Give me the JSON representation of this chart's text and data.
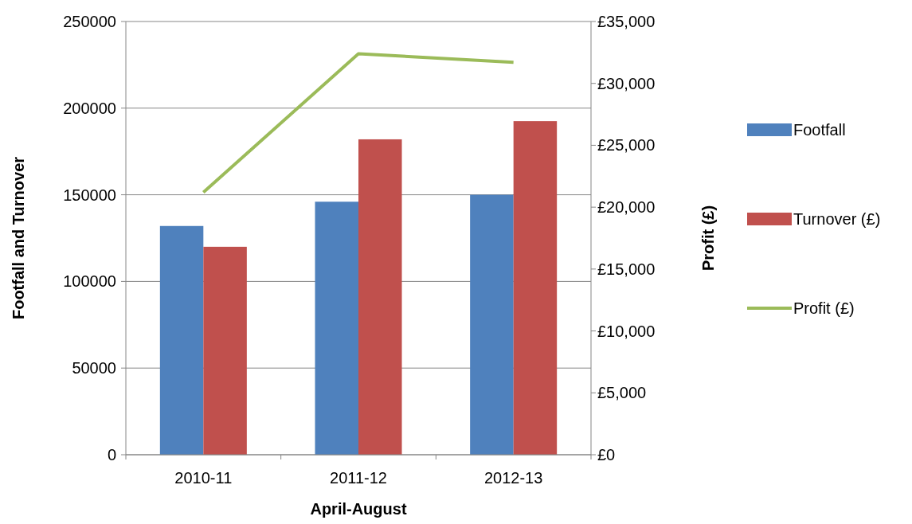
{
  "chart_data": {
    "type": "bar",
    "categories": [
      "2010-11",
      "2011-12",
      "2012-13"
    ],
    "xlabel": "April-August",
    "ylabel": "Footfall and Turnover",
    "y2label": "Profit (£)",
    "series": [
      {
        "name": "Footfall",
        "color": "#4f81bd",
        "values": [
          132000,
          146000,
          150000
        ]
      },
      {
        "name": "Turnover (£)",
        "color": "#c0504d",
        "values": [
          120000,
          182000,
          192500
        ]
      },
      {
        "name": "Profit (£)",
        "type": "line",
        "axis": "y2",
        "color": "#9bbb59",
        "values": [
          21200,
          32400,
          31700
        ]
      }
    ],
    "ylim": [
      0,
      250000
    ],
    "yticks": [
      0,
      50000,
      100000,
      150000,
      200000,
      250000
    ],
    "y2lim": [
      0,
      35000
    ],
    "y2ticks": [
      {
        "value": 0,
        "label": "£0"
      },
      {
        "value": 5000,
        "label": "£5,000"
      },
      {
        "value": 10000,
        "label": "£10,000"
      },
      {
        "value": 15000,
        "label": "£15,000"
      },
      {
        "value": 20000,
        "label": "£20,000"
      },
      {
        "value": 25000,
        "label": "£25,000"
      },
      {
        "value": 30000,
        "label": "£30,000"
      },
      {
        "value": 35000,
        "label": "£35,000"
      }
    ],
    "grid": "y",
    "legend": "right"
  }
}
